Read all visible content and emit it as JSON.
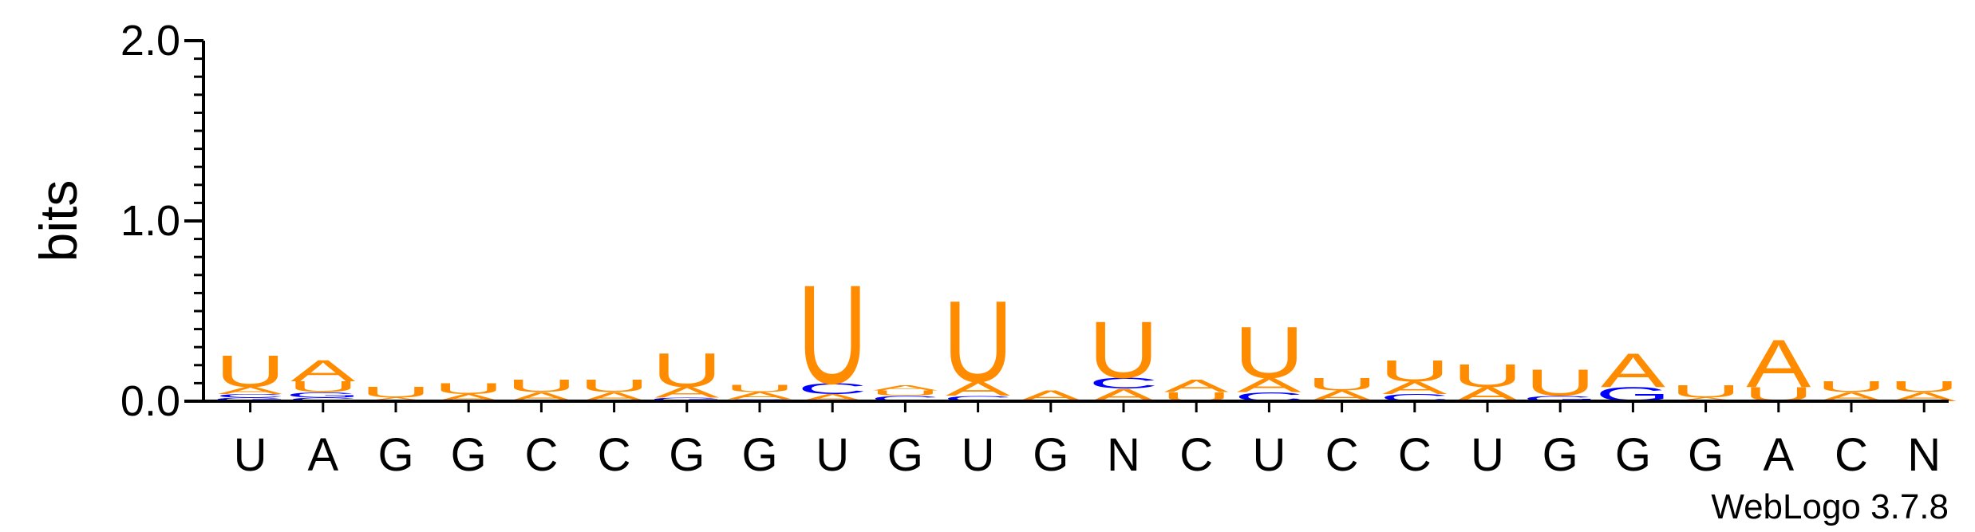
{
  "chart_data": {
    "type": "sequence-logo",
    "ylabel": "bits",
    "ylim": [
      0,
      2.0
    ],
    "y_ticks": [
      "0.0",
      "1.0",
      "2.0"
    ],
    "x_labels": [
      "U",
      "A",
      "G",
      "G",
      "C",
      "C",
      "G",
      "G",
      "U",
      "G",
      "U",
      "G",
      "N",
      "C",
      "U",
      "C",
      "C",
      "U",
      "G",
      "G",
      "G",
      "A",
      "C",
      "N"
    ],
    "colors": {
      "A": "#ff8c00",
      "U": "#ff8c00",
      "C": "#0000ff",
      "G": "#0000ff"
    },
    "positions": [
      [
        [
          "G",
          0.02
        ],
        [
          "C",
          0.02
        ],
        [
          "A",
          0.04
        ],
        [
          "U",
          0.18
        ]
      ],
      [
        [
          "C",
          0.02
        ],
        [
          "G",
          0.03
        ],
        [
          "U",
          0.06
        ],
        [
          "A",
          0.12
        ]
      ],
      [
        [
          "A",
          0.02
        ],
        [
          "U",
          0.06
        ]
      ],
      [
        [
          "A",
          0.04
        ],
        [
          "U",
          0.06
        ]
      ],
      [
        [
          "A",
          0.05
        ],
        [
          "U",
          0.07
        ]
      ],
      [
        [
          "A",
          0.05
        ],
        [
          "U",
          0.07
        ]
      ],
      [
        [
          "G",
          0.02
        ],
        [
          "A",
          0.06
        ],
        [
          "U",
          0.19
        ]
      ],
      [
        [
          "G",
          0.01
        ],
        [
          "A",
          0.04
        ],
        [
          "U",
          0.04
        ]
      ],
      [
        [
          "A",
          0.04
        ],
        [
          "C",
          0.06
        ],
        [
          "U",
          0.56
        ]
      ],
      [
        [
          "C",
          0.03
        ],
        [
          "U",
          0.03
        ],
        [
          "A",
          0.03
        ]
      ],
      [
        [
          "C",
          0.03
        ],
        [
          "A",
          0.08
        ],
        [
          "U",
          0.46
        ]
      ],
      [
        [
          "A",
          0.06
        ]
      ],
      [
        [
          "A",
          0.07
        ],
        [
          "C",
          0.06
        ],
        [
          "U",
          0.32
        ]
      ],
      [
        [
          "U",
          0.05
        ],
        [
          "A",
          0.07
        ]
      ],
      [
        [
          "C",
          0.05
        ],
        [
          "A",
          0.08
        ],
        [
          "U",
          0.29
        ]
      ],
      [
        [
          "A",
          0.06
        ],
        [
          "U",
          0.07
        ]
      ],
      [
        [
          "C",
          0.04
        ],
        [
          "A",
          0.07
        ],
        [
          "U",
          0.12
        ]
      ],
      [
        [
          "A",
          0.08
        ],
        [
          "U",
          0.13
        ]
      ],
      [
        [
          "G",
          0.03
        ],
        [
          "U",
          0.15
        ]
      ],
      [
        [
          "G",
          0.08
        ],
        [
          "A",
          0.19
        ]
      ],
      [
        [
          "A",
          0.02
        ],
        [
          "U",
          0.07
        ]
      ],
      [
        [
          "U",
          0.08
        ],
        [
          "A",
          0.27
        ]
      ],
      [
        [
          "A",
          0.05
        ],
        [
          "U",
          0.06
        ]
      ],
      [
        [
          "A",
          0.05
        ],
        [
          "U",
          0.06
        ]
      ]
    ]
  },
  "footer": {
    "credit": "WebLogo 3.7.8"
  }
}
